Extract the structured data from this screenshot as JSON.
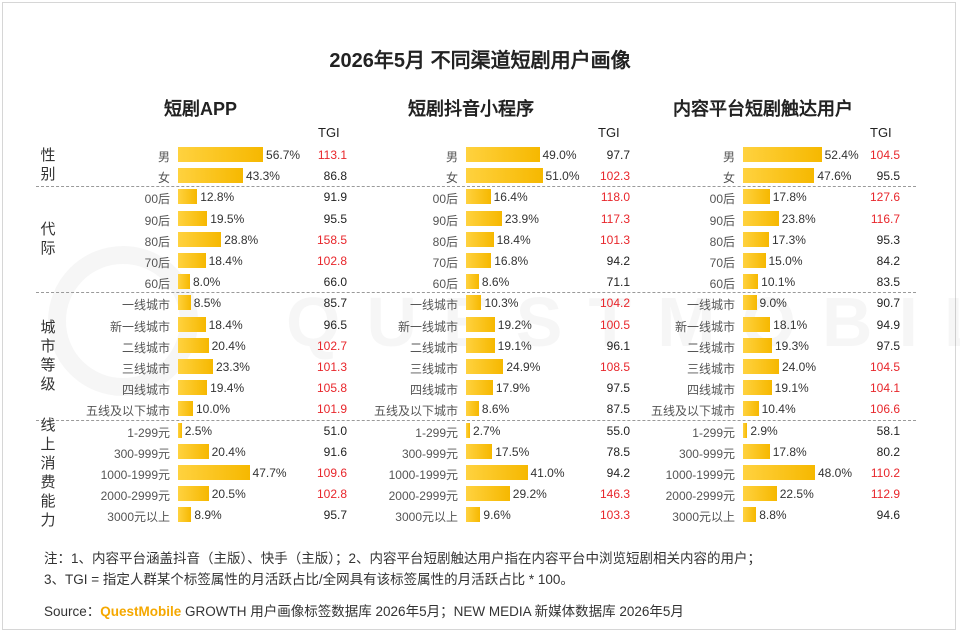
{
  "title": "2026年5月 不同渠道短剧用户画像",
  "tgi_header": "TGI",
  "groups": [
    {
      "label": "性别",
      "chars": [
        "性",
        "别"
      ],
      "rows": 2
    },
    {
      "label": "代际",
      "chars": [
        "代",
        "际"
      ],
      "rows": 5
    },
    {
      "label": "城市等级",
      "chars": [
        "城",
        "市",
        "等",
        "级"
      ],
      "rows": 6
    },
    {
      "label": "线上消费能力",
      "chars": [
        "线",
        "上",
        "消",
        "费",
        "能",
        "力"
      ],
      "rows": 5
    }
  ],
  "categories": [
    "男",
    "女",
    "00后",
    "90后",
    "80后",
    "70后",
    "60后",
    "一线城市",
    "新一线城市",
    "二线城市",
    "三线城市",
    "四线城市",
    "五线及以下城市",
    "1-299元",
    "300-999元",
    "1000-1999元",
    "2000-2999元",
    "3000元以上"
  ],
  "chart_data": {
    "type": "bar",
    "title": "2026年5月 不同渠道短剧用户画像",
    "categories": [
      "男",
      "女",
      "00后",
      "90后",
      "80后",
      "70后",
      "60后",
      "一线城市",
      "新一线城市",
      "二线城市",
      "三线城市",
      "四线城市",
      "五线及以下城市",
      "1-299元",
      "300-999元",
      "1000-1999元",
      "2000-2999元",
      "3000元以上"
    ],
    "series": [
      {
        "name": "短剧APP",
        "values": [
          56.7,
          43.3,
          12.8,
          19.5,
          28.8,
          18.4,
          8.0,
          8.5,
          18.4,
          20.4,
          23.3,
          19.4,
          10.0,
          2.5,
          20.4,
          47.7,
          20.5,
          8.9
        ],
        "labels": [
          "56.7%",
          "43.3%",
          "12.8%",
          "19.5%",
          "28.8%",
          "18.4%",
          "8.0%",
          "8.5%",
          "18.4%",
          "20.4%",
          "23.3%",
          "19.4%",
          "10.0%",
          "2.5%",
          "20.4%",
          "47.7%",
          "20.5%",
          "8.9%"
        ],
        "tgi": [
          "113.1",
          "86.8",
          "91.9",
          "95.5",
          "158.5",
          "102.8",
          "66.0",
          "85.7",
          "96.5",
          "102.7",
          "101.3",
          "105.8",
          "101.9",
          "51.0",
          "91.6",
          "109.6",
          "102.8",
          "95.7"
        ]
      },
      {
        "name": "短剧抖音小程序",
        "values": [
          49.0,
          51.0,
          16.4,
          23.9,
          18.4,
          16.8,
          8.6,
          10.3,
          19.2,
          19.1,
          24.9,
          17.9,
          8.6,
          2.7,
          17.5,
          41.0,
          29.2,
          9.6
        ],
        "labels": [
          "49.0%",
          "51.0%",
          "16.4%",
          "23.9%",
          "18.4%",
          "16.8%",
          "8.6%",
          "10.3%",
          "19.2%",
          "19.1%",
          "24.9%",
          "17.9%",
          "8.6%",
          "2.7%",
          "17.5%",
          "41.0%",
          "29.2%",
          "9.6%"
        ],
        "tgi": [
          "97.7",
          "102.3",
          "118.0",
          "117.3",
          "101.3",
          "94.2",
          "71.1",
          "104.2",
          "100.5",
          "96.1",
          "108.5",
          "97.5",
          "87.5",
          "55.0",
          "78.5",
          "94.2",
          "146.3",
          "103.3"
        ]
      },
      {
        "name": "内容平台短剧触达用户",
        "values": [
          52.4,
          47.6,
          17.8,
          23.8,
          17.3,
          15.0,
          10.1,
          9.0,
          18.1,
          19.3,
          24.0,
          19.1,
          10.4,
          2.9,
          17.8,
          48.0,
          22.5,
          8.8
        ],
        "labels": [
          "52.4%",
          "47.6%",
          "17.8%",
          "23.8%",
          "17.3%",
          "15.0%",
          "10.1%",
          "9.0%",
          "18.1%",
          "19.3%",
          "24.0%",
          "19.1%",
          "10.4%",
          "2.9%",
          "17.8%",
          "48.0%",
          "22.5%",
          "8.8%"
        ],
        "tgi": [
          "104.5",
          "95.5",
          "127.6",
          "116.7",
          "95.3",
          "84.2",
          "83.5",
          "90.7",
          "94.9",
          "97.5",
          "104.5",
          "104.1",
          "106.6",
          "58.1",
          "80.2",
          "110.2",
          "112.9",
          "94.6"
        ]
      }
    ],
    "highlight_threshold": 100,
    "highlight_color": "#e8262b",
    "bar_color": "#f6b800"
  },
  "notes": {
    "line1": "注：1、内容平台涵盖抖音（主版）、快手（主版）；2、内容平台短剧触达用户指在内容平台中浏览短剧相关内容的用户；",
    "line2": "3、TGI = 指定人群某个标签属性的月活跃占比/全网具有该标签属性的月活跃占比 * 100。"
  },
  "source": {
    "prefix": "Source：",
    "brand": "QuestMobile",
    "text": " GROWTH 用户画像标签数据库 2026年5月；NEW MEDIA 新媒体数据库 2026年5月"
  }
}
